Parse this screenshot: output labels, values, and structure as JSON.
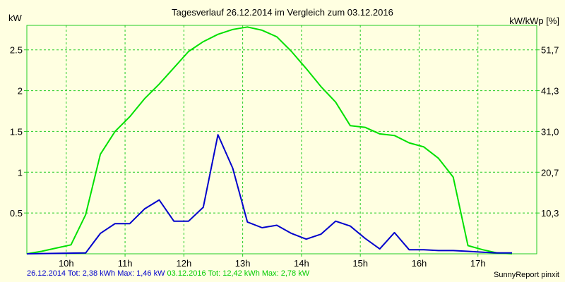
{
  "window": {
    "title": "Tagesverlauf 26.12.2014 im Vergleich zum 03.12.2016"
  },
  "colors": {
    "background": "#ffffe1",
    "grid": "#22cc22",
    "series_2014": "#0000cc",
    "series_2016": "#00e000"
  },
  "footer": {
    "s1": "26.12.2014 Tot: 2,38 kWh Max: 1,46 kW",
    "s2": "03.12.2016 Tot: 12,42 kWh Max: 2,78 kW",
    "credit": "SunnyReport pinxit"
  },
  "chart_data": {
    "type": "line",
    "title": "Tagesverlauf 26.12.2014 im Vergleich zum 03.12.2016",
    "ylabel": "kW",
    "ylabel_right": "kW/kWp [%]",
    "xlim": [
      9.33,
      18.0
    ],
    "ylim": [
      0,
      2.8
    ],
    "yticks": [
      0.5,
      1,
      1.5,
      2,
      2.5
    ],
    "ytick_labels": [
      "0.5",
      "1",
      "1.5",
      "2",
      "2.5"
    ],
    "yticks_right": [
      {
        "v": 0.5,
        "label": "10,3"
      },
      {
        "v": 1.0,
        "label": "20,7"
      },
      {
        "v": 1.5,
        "label": "31,0"
      },
      {
        "v": 2.0,
        "label": "41,3"
      },
      {
        "v": 2.5,
        "label": "51,7"
      }
    ],
    "xticks": [
      10,
      11,
      12,
      13,
      14,
      15,
      16,
      17
    ],
    "xtick_labels": [
      "10h",
      "11h",
      "12h",
      "13h",
      "14h",
      "15h",
      "16h",
      "17h"
    ],
    "grid": true,
    "series": [
      {
        "name": "26.12.2014",
        "color": "#0000cc",
        "x": [
          9.33,
          10.33,
          10.58,
          10.83,
          11.08,
          11.33,
          11.58,
          11.83,
          12.08,
          12.33,
          12.58,
          12.83,
          13.08,
          13.33,
          13.58,
          13.83,
          14.08,
          14.33,
          14.58,
          14.83,
          15.08,
          15.33,
          15.58,
          15.83,
          16.08,
          16.33,
          16.58,
          16.83,
          17.08,
          17.33,
          17.58
        ],
        "y": [
          0.0,
          0.01,
          0.25,
          0.37,
          0.37,
          0.55,
          0.66,
          0.4,
          0.4,
          0.57,
          1.46,
          1.05,
          0.39,
          0.32,
          0.35,
          0.25,
          0.18,
          0.24,
          0.4,
          0.34,
          0.19,
          0.06,
          0.26,
          0.05,
          0.05,
          0.04,
          0.04,
          0.03,
          0.02,
          0.01,
          0.01
        ]
      },
      {
        "name": "03.12.2016",
        "color": "#00e000",
        "x": [
          9.33,
          9.58,
          9.83,
          10.08,
          10.33,
          10.58,
          10.83,
          11.08,
          11.33,
          11.58,
          11.83,
          12.08,
          12.33,
          12.58,
          12.83,
          13.08,
          13.33,
          13.58,
          13.83,
          14.08,
          14.33,
          14.58,
          14.83,
          15.08,
          15.33,
          15.58,
          15.83,
          16.08,
          16.33,
          16.58,
          16.83,
          17.08,
          17.33,
          17.58
        ],
        "y": [
          0.0,
          0.03,
          0.07,
          0.11,
          0.48,
          1.22,
          1.5,
          1.68,
          1.9,
          2.08,
          2.28,
          2.48,
          2.6,
          2.69,
          2.75,
          2.78,
          2.74,
          2.66,
          2.48,
          2.27,
          2.05,
          1.86,
          1.57,
          1.55,
          1.47,
          1.45,
          1.36,
          1.31,
          1.17,
          0.94,
          0.1,
          0.05,
          0.01,
          0.0
        ]
      }
    ]
  }
}
